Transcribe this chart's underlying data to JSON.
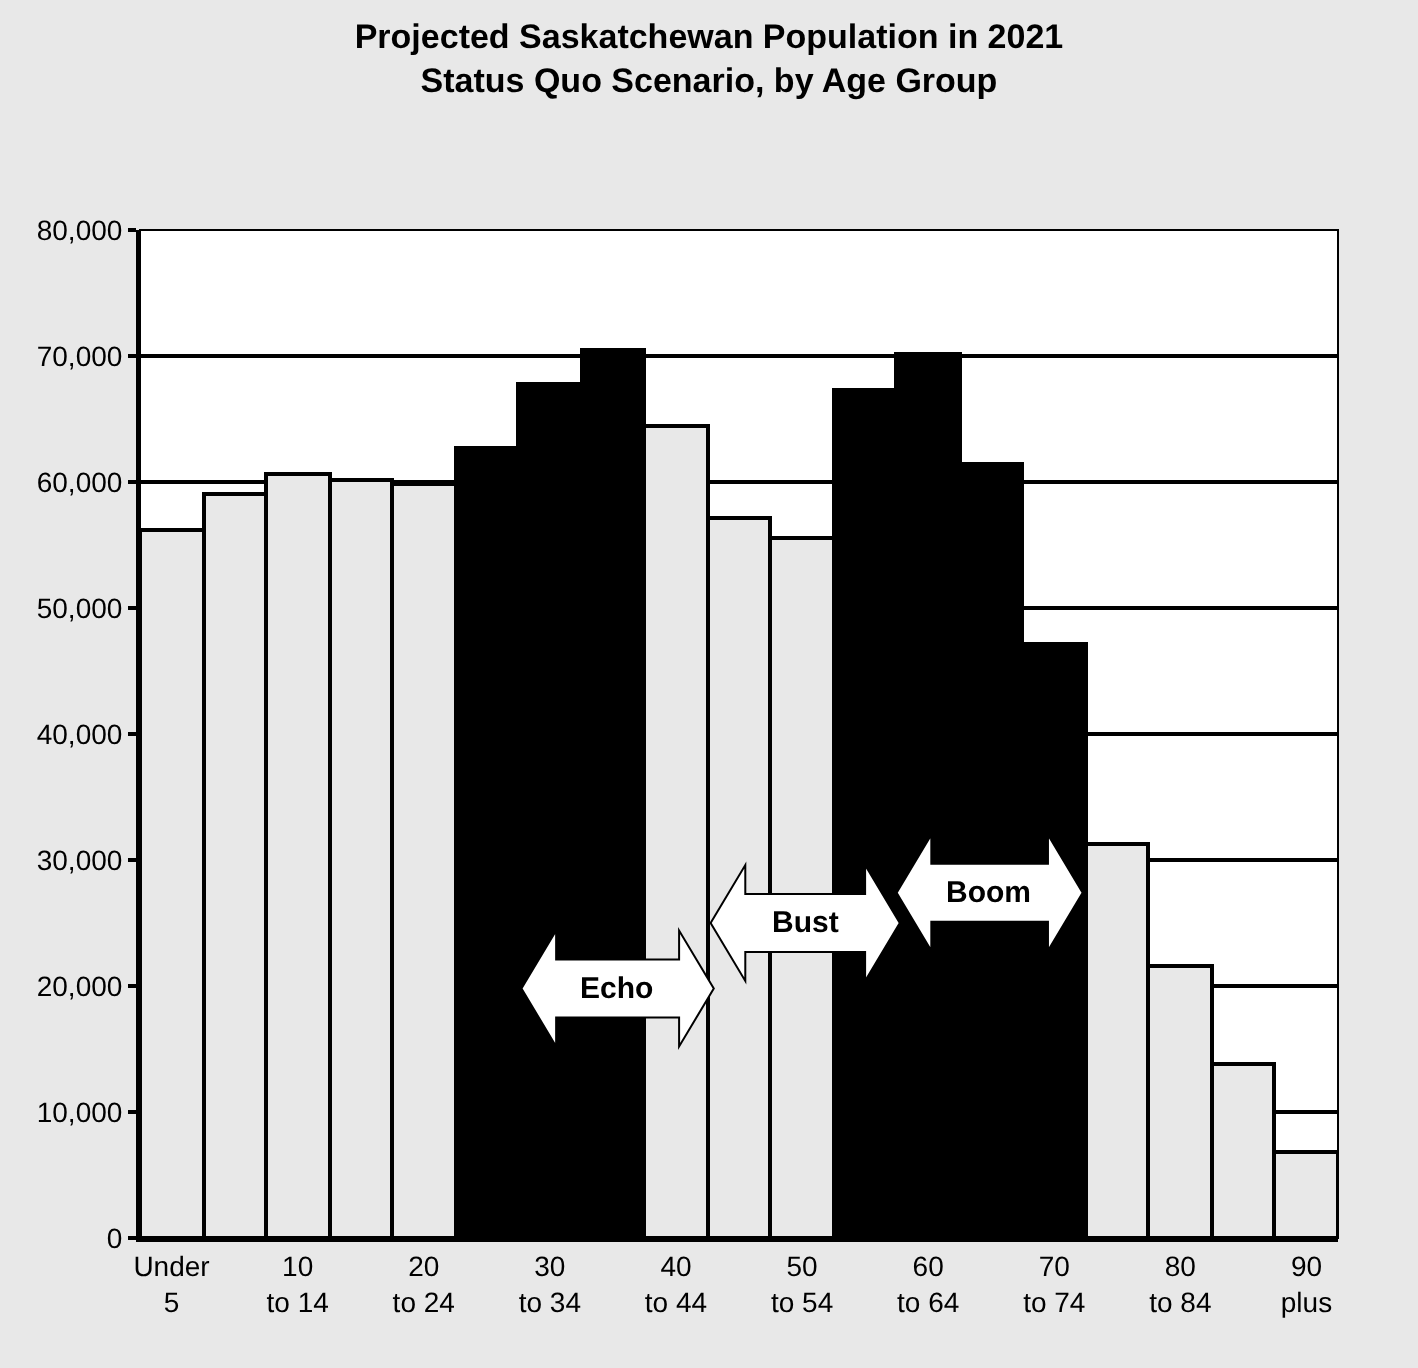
{
  "chart_data": {
    "type": "bar",
    "title": "Projected Saskatchewan Population in 2021\nStatus Quo Scenario, by Age Group",
    "categories": [
      "Under 5",
      null,
      "10 to 14",
      null,
      "20 to 24",
      null,
      "30 to 34",
      null,
      "40 to 44",
      null,
      "50 to 54",
      null,
      "60 to 64",
      null,
      "70 to 74",
      null,
      "80 to 84",
      null,
      "90 plus"
    ],
    "values": [
      56200,
      59100,
      60700,
      60100,
      59900,
      62700,
      67700,
      70400,
      64500,
      57100,
      55500,
      67300,
      70200,
      61500,
      47200,
      31300,
      21600,
      13800,
      6800
    ],
    "colors": [
      "#e8e8e8",
      "#e8e8e8",
      "#e8e8e8",
      "#e8e8e8",
      "#e8e8e8",
      "#000000",
      "#000000",
      "#000000",
      "#e8e8e8",
      "#e8e8e8",
      "#e8e8e8",
      "#000000",
      "#000000",
      "#000000",
      "#000000",
      "#e8e8e8",
      "#e8e8e8",
      "#e8e8e8",
      "#e8e8e8"
    ],
    "ylim": [
      0,
      80000
    ],
    "yticks": [
      {
        "value": 0,
        "label": "0"
      },
      {
        "value": 10000,
        "label": "10,000"
      },
      {
        "value": 20000,
        "label": "20,000"
      },
      {
        "value": 30000,
        "label": "30,000"
      },
      {
        "value": 40000,
        "label": "40,000"
      },
      {
        "value": 50000,
        "label": "50,000"
      },
      {
        "value": 60000,
        "label": "60,000"
      },
      {
        "value": 70000,
        "label": "70,000"
      },
      {
        "value": 80000,
        "label": "80,000"
      }
    ],
    "grid": "y",
    "legend": false,
    "annotations": [
      "Echo",
      "Bust",
      "Boom"
    ]
  }
}
